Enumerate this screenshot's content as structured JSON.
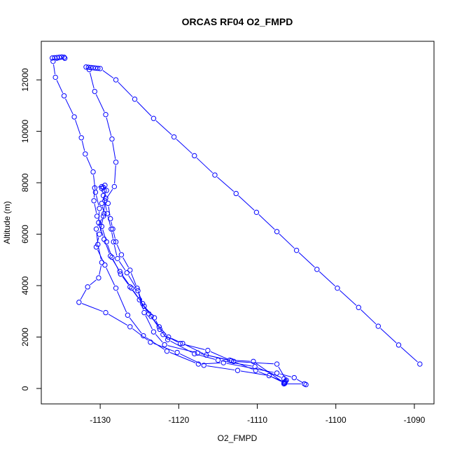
{
  "chart_data": {
    "type": "scatter",
    "title": "ORCAS RF04 O2_FMPD",
    "xlabel": "O2_FMPD",
    "ylabel": "Altitude (m)",
    "xlim": [
      -1137.5,
      -1087.5
    ],
    "ylim": [
      -600,
      13500
    ],
    "x_ticks": [
      -1130,
      -1120,
      -1110,
      -1100,
      -1090
    ],
    "x_tick_labels": [
      "-1130",
      "-1120",
      "-1110",
      "-1100",
      "-1090"
    ],
    "y_ticks": [
      0,
      2000,
      4000,
      6000,
      8000,
      10000,
      12000
    ],
    "y_tick_labels": [
      "0",
      "2000",
      "4000",
      "6000",
      "8000",
      "10000",
      "12000"
    ],
    "grid": false,
    "legend": "none",
    "series_color": "#0000ff",
    "series": [
      {
        "points": [
          [
            -1136.1,
            12850
          ],
          [
            -1135.8,
            12860
          ],
          [
            -1135.5,
            12870
          ],
          [
            -1135.2,
            12880
          ],
          [
            -1134.9,
            12890
          ],
          [
            -1134.6,
            12880
          ],
          [
            -1134.5,
            12840
          ],
          [
            -1136.0,
            12720
          ],
          [
            -1135.7,
            12100
          ],
          [
            -1134.6,
            11380
          ],
          [
            -1133.3,
            10560
          ],
          [
            -1132.4,
            9750
          ],
          [
            -1131.9,
            9120
          ],
          [
            -1130.9,
            8420
          ],
          [
            -1130.6,
            7630
          ],
          [
            -1130.1,
            7000
          ],
          [
            -1130.2,
            6450
          ],
          [
            -1129.5,
            5800
          ],
          [
            -1128.7,
            5150
          ],
          [
            -1127.5,
            4550
          ],
          [
            -1126.0,
            3900
          ],
          [
            -1124.4,
            3200
          ],
          [
            -1123.1,
            2750
          ],
          [
            -1122.0,
            2100
          ],
          [
            -1119.8,
            1750
          ],
          [
            -1116.3,
            1480
          ],
          [
            -1113.3,
            1080
          ],
          [
            -1110.2,
            700
          ],
          [
            -1106.5,
            250
          ],
          [
            -1106.3,
            320
          ],
          [
            -1107.5,
            950
          ],
          [
            -1113.0,
            1050
          ],
          [
            -1117.6,
            1380
          ],
          [
            -1121.8,
            1700
          ],
          [
            -1123.2,
            2200
          ],
          [
            -1124.4,
            2950
          ],
          [
            -1125.2,
            3800
          ],
          [
            -1126.6,
            4500
          ],
          [
            -1127.8,
            5050
          ],
          [
            -1128.3,
            5700
          ],
          [
            -1128.6,
            6200
          ],
          [
            -1129.1,
            6800
          ],
          [
            -1129.6,
            7500
          ],
          [
            -1129.8,
            7780
          ],
          [
            -1129.8,
            7850
          ],
          [
            -1129.6,
            7820
          ],
          [
            -1129.5,
            7700
          ],
          [
            -1129.3,
            7400
          ],
          [
            -1129.0,
            7200
          ],
          [
            -1128.7,
            6600
          ],
          [
            -1128.4,
            6200
          ],
          [
            -1128.0,
            5700
          ],
          [
            -1127.3,
            5200
          ],
          [
            -1126.2,
            4600
          ],
          [
            -1125.3,
            3900
          ],
          [
            -1124.6,
            3300
          ],
          [
            -1123.5,
            2800
          ],
          [
            -1122.4,
            2300
          ],
          [
            -1121.4,
            1900
          ],
          [
            -1118.0,
            1350
          ],
          [
            -1115.0,
            1100
          ],
          [
            -1110.3,
            850
          ],
          [
            -1106.6,
            380
          ],
          [
            -1106.4,
            280
          ],
          [
            -1106.6,
            180
          ],
          [
            -1104.0,
            180
          ],
          [
            -1103.8,
            150
          ],
          [
            -1105.3,
            420
          ],
          [
            -1107.5,
            600
          ],
          [
            -1114.3,
            1000
          ],
          [
            -1117.5,
            950
          ],
          [
            -1121.5,
            1450
          ],
          [
            -1124.5,
            2050
          ],
          [
            -1126.5,
            2850
          ],
          [
            -1128.0,
            3900
          ],
          [
            -1129.4,
            4800
          ],
          [
            -1130.5,
            5500
          ],
          [
            -1130.1,
            6000
          ],
          [
            -1129.5,
            6800
          ],
          [
            -1129.8,
            7200
          ],
          [
            -1129.2,
            7700
          ],
          [
            -1129.4,
            7900
          ],
          [
            -1130.7,
            7800
          ],
          [
            -1130.8,
            7300
          ],
          [
            -1130.4,
            6700
          ],
          [
            -1129.8,
            6300
          ],
          [
            -1129.2,
            5700
          ],
          [
            -1128.5,
            5100
          ],
          [
            -1127.4,
            4450
          ],
          [
            -1126.2,
            3950
          ],
          [
            -1125.0,
            3450
          ],
          [
            -1123.8,
            2900
          ],
          [
            -1122.5,
            2400
          ],
          [
            -1121.3,
            2000
          ],
          [
            -1119.5,
            1750
          ],
          [
            -1116.5,
            1300
          ],
          [
            -1113.5,
            1100
          ],
          [
            -1110.5,
            1050
          ],
          [
            -1106.5,
            200
          ],
          [
            -1106.6,
            220
          ],
          [
            -1108.5,
            500
          ],
          [
            -1112.5,
            700
          ],
          [
            -1116.8,
            900
          ],
          [
            -1120.2,
            1400
          ],
          [
            -1123.6,
            1800
          ],
          [
            -1126.2,
            2400
          ],
          [
            -1129.3,
            2950
          ],
          [
            -1132.7,
            3350
          ],
          [
            -1131.6,
            3950
          ],
          [
            -1130.2,
            4300
          ],
          [
            -1129.8,
            4900
          ],
          [
            -1130.3,
            5600
          ],
          [
            -1130.5,
            6200
          ],
          [
            -1129.6,
            6700
          ],
          [
            -1129.4,
            7300
          ],
          [
            -1128.2,
            7850
          ],
          [
            -1128.0,
            8800
          ],
          [
            -1128.5,
            9700
          ],
          [
            -1129.3,
            10650
          ],
          [
            -1130.7,
            11550
          ],
          [
            -1131.4,
            12400
          ],
          [
            -1131.8,
            12500
          ],
          [
            -1131.5,
            12490
          ],
          [
            -1131.2,
            12480
          ],
          [
            -1130.9,
            12470
          ],
          [
            -1130.6,
            12460
          ],
          [
            -1130.3,
            12450
          ],
          [
            -1130.0,
            12440
          ],
          [
            -1128.0,
            12000
          ],
          [
            -1125.6,
            11250
          ],
          [
            -1123.2,
            10500
          ],
          [
            -1120.6,
            9780
          ],
          [
            -1118.0,
            9050
          ],
          [
            -1115.4,
            8300
          ],
          [
            -1112.7,
            7580
          ],
          [
            -1110.1,
            6850
          ],
          [
            -1107.5,
            6100
          ],
          [
            -1105.0,
            5370
          ],
          [
            -1102.4,
            4630
          ],
          [
            -1099.8,
            3900
          ],
          [
            -1097.1,
            3150
          ],
          [
            -1094.6,
            2420
          ],
          [
            -1092.0,
            1690
          ],
          [
            -1089.3,
            950
          ]
        ]
      }
    ]
  }
}
